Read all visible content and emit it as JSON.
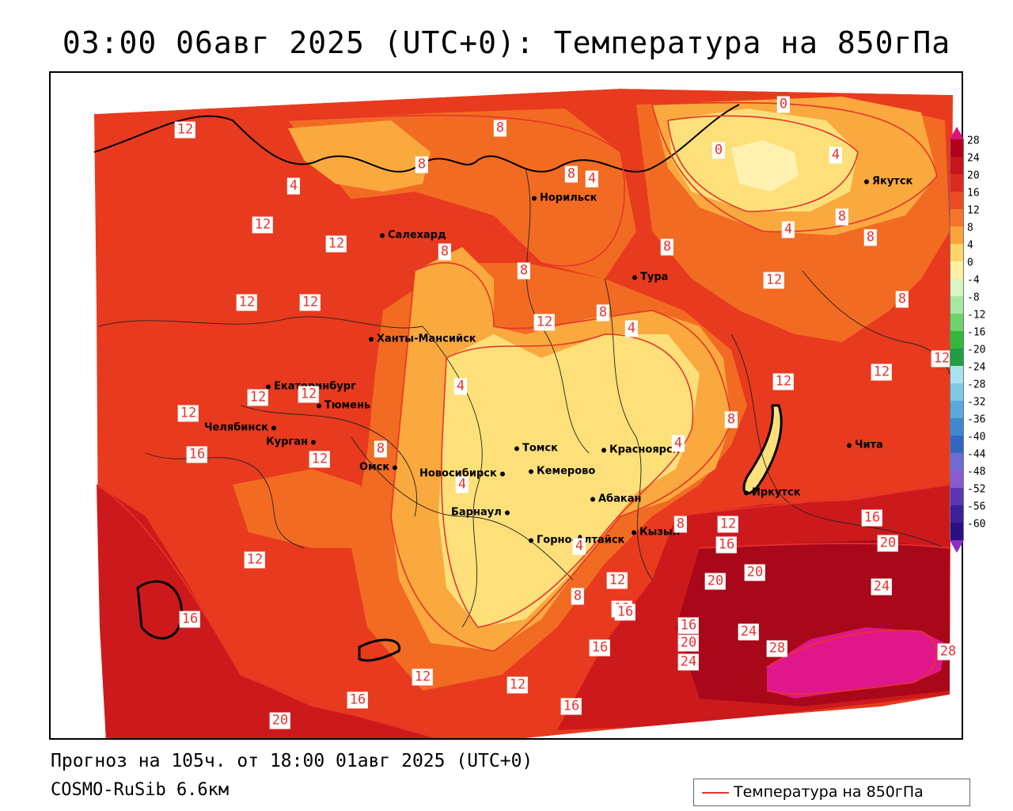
{
  "title": "03:00 06авг 2025 (UTC+0): Температура на 850гПа",
  "footer": {
    "forecast": "Прогноз на 105ч. от 18:00 01авг 2025 (UTC+0)",
    "model": "COSMO-RuSib 6.6км"
  },
  "legend": {
    "label": "Температура на 850гПа",
    "line_color": "#e8332c"
  },
  "colorbar": {
    "labels": [
      "28",
      "24",
      "20",
      "16",
      "12",
      "8",
      "4",
      "0",
      "-4",
      "-8",
      "-12",
      "-16",
      "-20",
      "-24",
      "-28",
      "-32",
      "-36",
      "-40",
      "-44",
      "-48",
      "-52",
      "-56",
      "-60"
    ],
    "colors": [
      "#b3001a",
      "#c8141c",
      "#dd2a1f",
      "#ee4a22",
      "#f7742a",
      "#fba23a",
      "#fcd56a",
      "#fdf0a4",
      "#d8f5c2",
      "#a8e7a0",
      "#6bd46a",
      "#33b83a",
      "#1f9f43",
      "#a9e3f2",
      "#80cae6",
      "#5aa9da",
      "#3f88cf",
      "#3167c2",
      "#6e6bd6",
      "#8a5ad0",
      "#5b36b8",
      "#3c1f9c",
      "#2a0f85"
    ],
    "max_color": "#d8157a",
    "min_color": "#8a2ec8"
  },
  "cities": [
    {
      "name": "Норильск"
    },
    {
      "name": "Якутск"
    },
    {
      "name": "Салехард"
    },
    {
      "name": "Тура"
    },
    {
      "name": "Ханты-Мансийск"
    },
    {
      "name": "Екатеринбург"
    },
    {
      "name": "Тюмень"
    },
    {
      "name": "Челябинск"
    },
    {
      "name": "Курган"
    },
    {
      "name": "Омск"
    },
    {
      "name": "Новосибирск"
    },
    {
      "name": "Томск"
    },
    {
      "name": "Кемерово"
    },
    {
      "name": "Красноярск"
    },
    {
      "name": "Барнаул"
    },
    {
      "name": "Абакан"
    },
    {
      "name": "Горно-Алтайск"
    },
    {
      "name": "Кызыл"
    },
    {
      "name": "Иркутск"
    },
    {
      "name": "Чита"
    }
  ],
  "isotherm_labels": [
    "12",
    "4",
    "8",
    "8",
    "8",
    "4",
    "0",
    "0",
    "4",
    "12",
    "12",
    "8",
    "4",
    "8",
    "8",
    "8",
    "8",
    "12",
    "12",
    "12",
    "8",
    "12",
    "8",
    "4",
    "12",
    "12",
    "12",
    "12",
    "12",
    "12",
    "4",
    "12",
    "8",
    "8",
    "4",
    "16",
    "12",
    "12",
    "4",
    "8",
    "4",
    "12",
    "16",
    "16",
    "20",
    "20",
    "20",
    "12",
    "16",
    "24",
    "8",
    "16",
    "16",
    "20",
    "24",
    "24",
    "28",
    "28",
    "16",
    "12",
    "16",
    "20",
    "16",
    "12"
  ],
  "map_colors": {
    "band_28": "#e0178a",
    "band_20": "#a8081a",
    "band_16": "#cc1a1c",
    "band_12": "#e83a1e",
    "band_8": "#f26b22",
    "band_4": "#f9a93e",
    "band_0": "#fde07a",
    "band_m4": "#fff1b0"
  }
}
